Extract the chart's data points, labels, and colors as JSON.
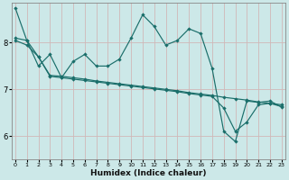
{
  "xlabel": "Humidex (Indice chaleur)",
  "bg_color": "#cce8e8",
  "grid_color": "#b8d8d8",
  "line_color": "#1a6e6a",
  "x_ticks": [
    0,
    1,
    2,
    3,
    4,
    5,
    6,
    7,
    8,
    9,
    10,
    11,
    12,
    13,
    14,
    15,
    16,
    17,
    18,
    19,
    20,
    21,
    22,
    23
  ],
  "y_ticks": [
    6,
    7,
    8
  ],
  "ylim": [
    5.5,
    8.85
  ],
  "xlim": [
    -0.3,
    23.3
  ],
  "series1_x": [
    0,
    1,
    2,
    3,
    4,
    5,
    6,
    7,
    8,
    9,
    10,
    11,
    12,
    13,
    14,
    15,
    16,
    17,
    18,
    19,
    20,
    21,
    22,
    23
  ],
  "series1_y": [
    8.75,
    8.05,
    7.5,
    7.75,
    7.25,
    7.6,
    7.75,
    7.5,
    7.5,
    7.65,
    8.1,
    8.6,
    8.35,
    7.95,
    8.05,
    8.3,
    8.2,
    7.45,
    6.1,
    5.88,
    6.75,
    6.72,
    6.75,
    6.62
  ],
  "series2_x": [
    0,
    1,
    2,
    3,
    4,
    5,
    6,
    7,
    8,
    9,
    10,
    11,
    12,
    13,
    14,
    15,
    16,
    17,
    18,
    19,
    20,
    21,
    22,
    23
  ],
  "series2_y": [
    8.1,
    8.05,
    7.7,
    7.3,
    7.28,
    7.25,
    7.22,
    7.18,
    7.15,
    7.12,
    7.09,
    7.06,
    7.03,
    7.0,
    6.97,
    6.93,
    6.9,
    6.87,
    6.83,
    6.8,
    6.77,
    6.73,
    6.7,
    6.67
  ],
  "series3_x": [
    0,
    1,
    2,
    3,
    4,
    5,
    6,
    7,
    8,
    9,
    10,
    11,
    12,
    13,
    14,
    15,
    16,
    17,
    18,
    19,
    20,
    21,
    22,
    23
  ],
  "series3_y": [
    8.05,
    7.95,
    7.7,
    7.28,
    7.25,
    7.22,
    7.19,
    7.16,
    7.13,
    7.1,
    7.07,
    7.04,
    7.01,
    6.98,
    6.95,
    6.91,
    6.88,
    6.85,
    6.6,
    6.1,
    6.3,
    6.67,
    6.7,
    6.63
  ]
}
